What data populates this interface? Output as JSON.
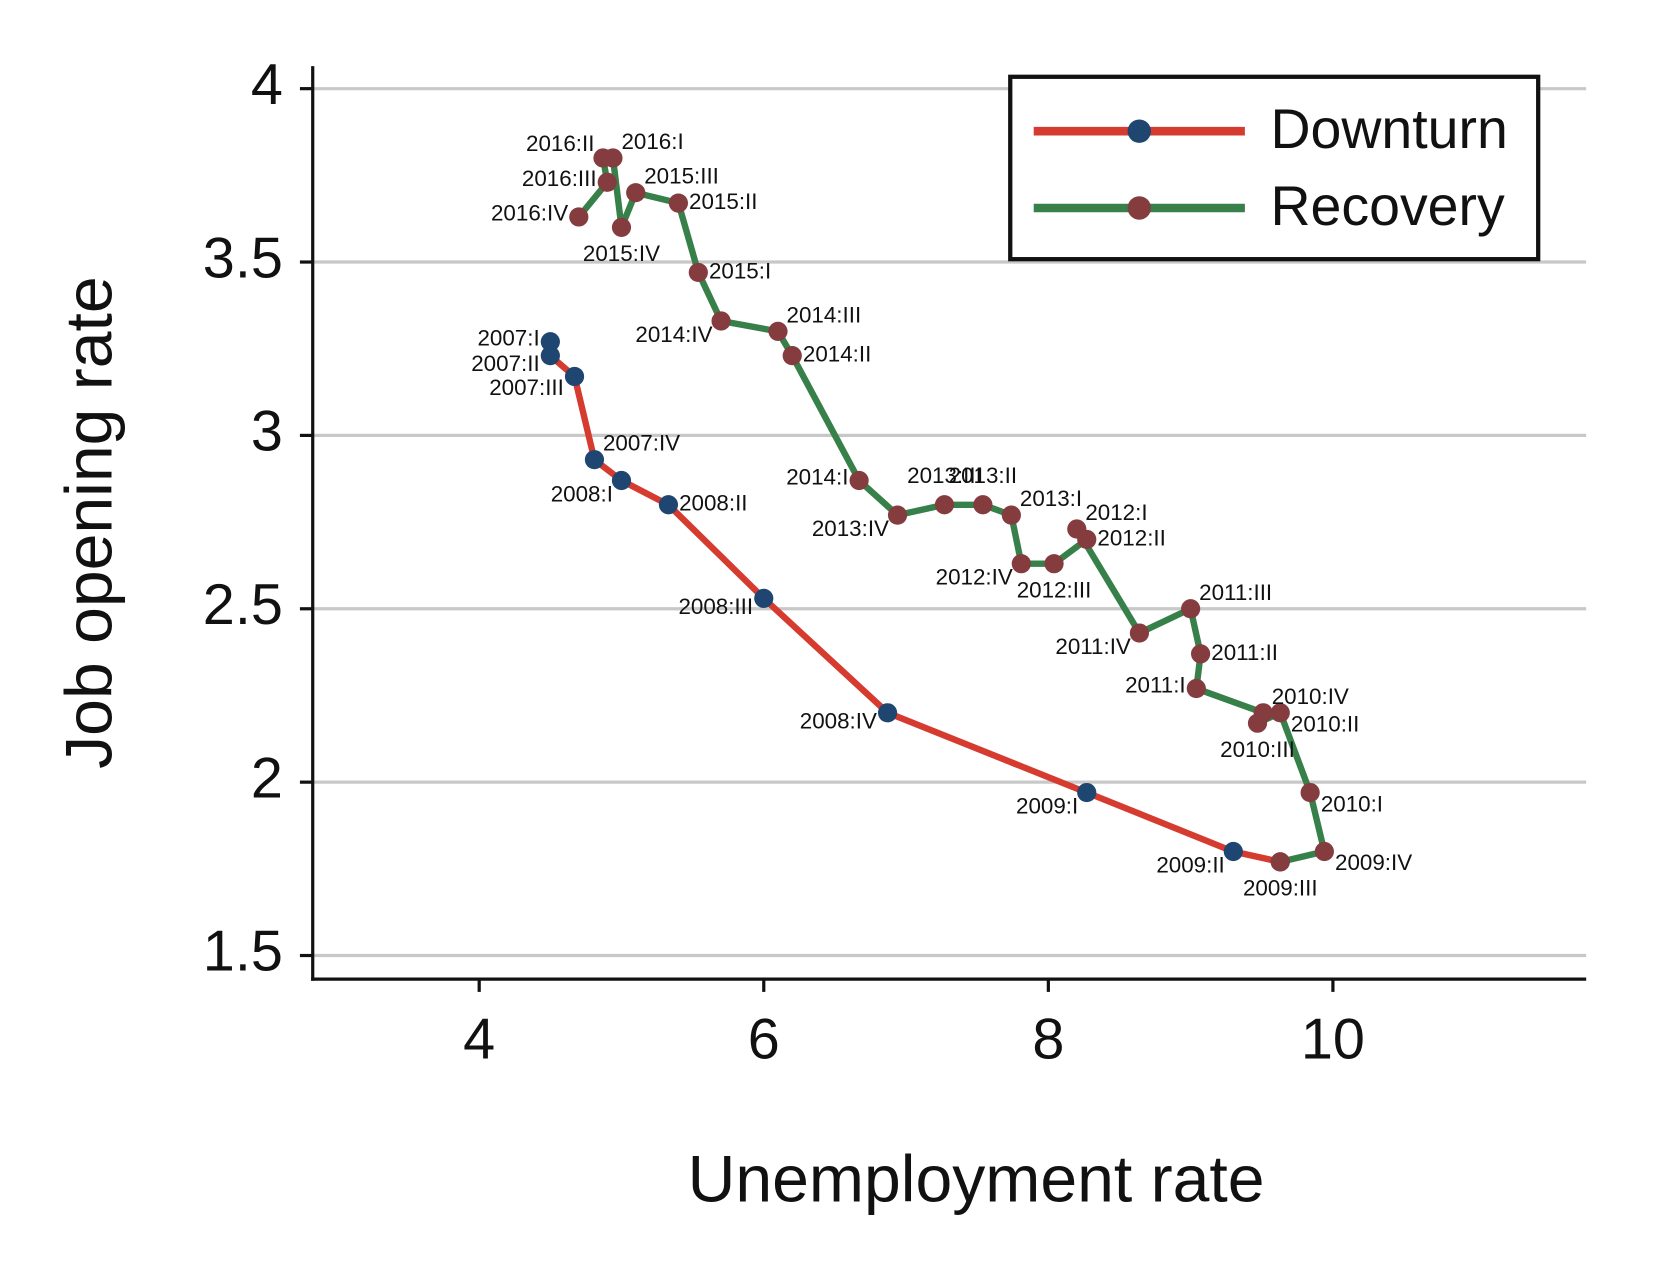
{
  "chart_data": {
    "type": "line",
    "x_label": "Unemployment rate",
    "y_label": "Job opening rate",
    "xlim": [
      2.83,
      11.78
    ],
    "ylim": [
      1.432,
      4.065
    ],
    "xticks": [
      4,
      6,
      8,
      10
    ],
    "yticks": [
      1.5,
      2,
      2.5,
      3,
      3.5,
      4
    ],
    "grid": true,
    "legend": "upper right",
    "series": [
      {
        "name": "Downturn",
        "color": "#d63b2f",
        "marker_color": "#1f4670",
        "x": [
          4.5,
          4.5,
          4.67,
          4.81,
          5.0,
          5.33,
          6.0,
          6.87,
          8.27,
          9.3,
          9.63
        ],
        "y": [
          3.27,
          3.23,
          3.17,
          2.93,
          2.87,
          2.8,
          2.53,
          2.2,
          1.97,
          1.8,
          1.77
        ],
        "labels": [
          "2007:I",
          "2007:II",
          "2007:III",
          "2007:IV",
          "2008:I",
          "2008:II",
          "2008:III",
          "2008:IV",
          "2009:I",
          "2009:II",
          null
        ]
      },
      {
        "name": "Recovery",
        "color": "#37804a",
        "marker_color": "#843c3f",
        "x": [
          9.63,
          9.94,
          9.84,
          9.63,
          9.47,
          9.51,
          9.04,
          9.07,
          9.0,
          8.64,
          8.2,
          8.27,
          8.04,
          7.81,
          7.74,
          7.54,
          7.27,
          6.94,
          6.67,
          6.2,
          6.1,
          5.7,
          5.54,
          5.4,
          5.1,
          5.0,
          4.94,
          4.87,
          4.9,
          4.7
        ],
        "y": [
          1.77,
          1.8,
          1.97,
          2.2,
          2.17,
          2.2,
          2.27,
          2.37,
          2.5,
          2.43,
          2.73,
          2.7,
          2.63,
          2.63,
          2.77,
          2.8,
          2.8,
          2.77,
          2.87,
          3.23,
          3.3,
          3.33,
          3.47,
          3.67,
          3.7,
          3.6,
          3.8,
          3.8,
          3.73,
          3.63
        ],
        "labels": [
          "2009:III",
          "2009:IV",
          "2010:I",
          "2010:II",
          "2010:III",
          "2010:IV",
          "2011:I",
          "2011:II",
          "2011:III",
          "2011:IV",
          "2012:I",
          "2012:II",
          "2012:III",
          "2012:IV",
          "2013:I",
          "2013:II",
          "2013:III",
          "2013:IV",
          "2014:I",
          "2014:II",
          "2014:III",
          "2014:IV",
          "2015:I",
          "2015:II",
          "2015:III",
          "2015:IV",
          "2016:I",
          "2016:II",
          "2016:III",
          "2016:IV"
        ]
      }
    ]
  }
}
